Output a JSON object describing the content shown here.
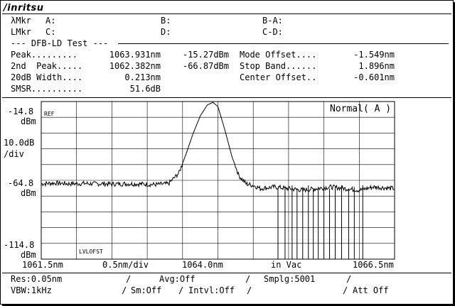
{
  "brand": "/inritsu",
  "markers": {
    "lmkr_label": "λMkr",
    "lmkr_a": "A:",
    "lmkr_b": "B:",
    "lmkr_ba": "B-A:",
    "Lmkr_label": "LMkr",
    "Lmkr_c": "C:",
    "Lmkr_d": "D:",
    "Lmkr_cd": "C-D:"
  },
  "test": {
    "title": "--- DFB-LD Test ---",
    "rows": [
      {
        "label": "Peak.........",
        "wave": "1063.931nm",
        "level": "-15.27dBm",
        "param": "Mode Offset....",
        "value": "-1.549nm"
      },
      {
        "label": "2nd  Peak.....",
        "wave": "1062.382nm",
        "level": "-66.87dBm",
        "param": "Stop Band......",
        "value": "1.896nm"
      },
      {
        "label": "20dB Width....",
        "wave": "0.213nm",
        "level": "",
        "param": "Center Offset..",
        "value": "-0.601nm"
      },
      {
        "label": "SMSR..........",
        "wave": "51.6dB",
        "level": "",
        "param": "",
        "value": ""
      }
    ]
  },
  "scale": {
    "ref_value": "-14.8",
    "ref_unit": "dBm",
    "div_value": "10.0dB",
    "div_unit": "/div",
    "mid_value": "-64.8",
    "mid_unit": "dBm",
    "bottom_value": "-114.8",
    "bottom_unit": "dBm",
    "ref_marker": "REF",
    "lvl_marker": "LVLOFST",
    "mode": "Normal( A )"
  },
  "xaxis": {
    "start": "1061.5nm",
    "per_div": "0.5nm/div",
    "center": "1064.0nm",
    "medium": "in Vac",
    "stop": "1066.5nm"
  },
  "status": {
    "res": "Res:0.05nm",
    "avg": "Avg:Off",
    "smplg": "Smplg:5001",
    "vbw": "VBW:1kHz",
    "sm": "Sm:Off",
    "intvl": "Intvl:Off",
    "att": "Att Off"
  },
  "chart_data": {
    "type": "line",
    "x_unit": "nm",
    "y_unit": "dBm",
    "xlim": [
      1061.5,
      1066.5
    ],
    "ylim": [
      -114.8,
      -14.8
    ],
    "grid": true,
    "series": [
      {
        "x": [
          1061.5,
          1061.7,
          1061.9,
          1062.1,
          1062.3,
          1062.38,
          1062.5,
          1062.7,
          1062.9,
          1063.1,
          1063.3,
          1063.45,
          1063.55,
          1063.65,
          1063.75,
          1063.85,
          1063.93,
          1064.0,
          1064.1,
          1064.2,
          1064.3,
          1064.4,
          1064.5,
          1064.6,
          1064.8,
          1065.0,
          1065.2,
          1065.4,
          1065.6,
          1065.8,
          1066.0,
          1066.2,
          1066.5
        ],
        "y": [
          -67,
          -66.5,
          -67,
          -66.8,
          -67,
          -66.9,
          -67.2,
          -67,
          -67.1,
          -67.5,
          -67,
          -60,
          -48,
          -35,
          -24,
          -17,
          -15.3,
          -18,
          -33,
          -50,
          -62,
          -67,
          -68,
          -70,
          -69,
          -70,
          -71,
          -70,
          -69,
          -70,
          -71,
          -69,
          -70
        ]
      }
    ],
    "dropouts_x": [
      1064.85,
      1064.95,
      1065.05,
      1065.12,
      1065.2,
      1065.28,
      1065.35,
      1065.42,
      1065.5,
      1065.58,
      1065.66,
      1065.75,
      1065.85,
      1065.93,
      1066.05
    ]
  }
}
